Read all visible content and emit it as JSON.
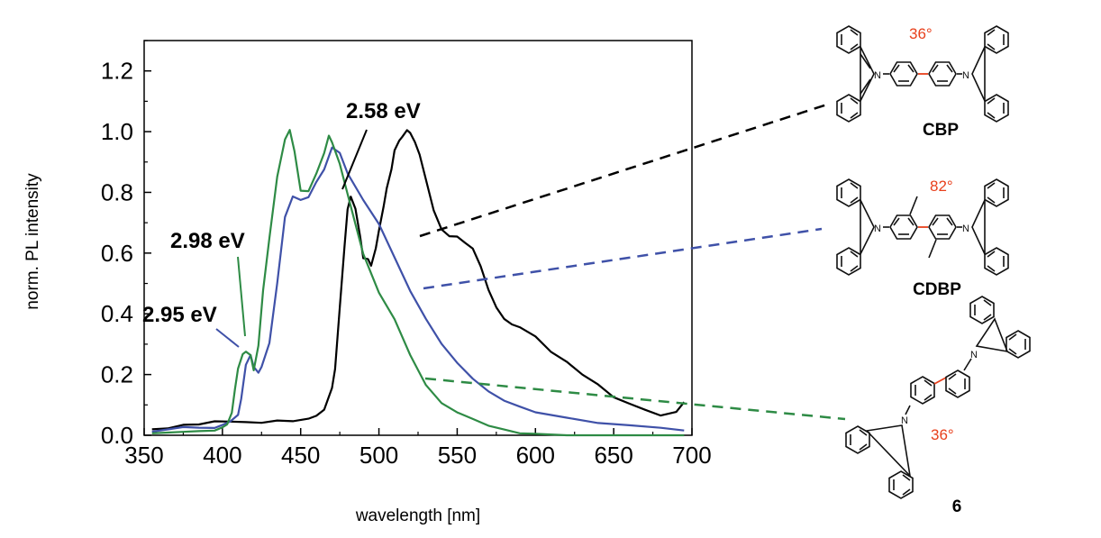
{
  "chart_data": {
    "type": "line",
    "xlabel": "wavelength [nm]",
    "ylabel": "norm. PL intensity",
    "xlim": [
      350,
      700
    ],
    "ylim": [
      0,
      1.3
    ],
    "xticks": [
      "350",
      "400",
      "450",
      "500",
      "550",
      "600",
      "650",
      "700"
    ],
    "yticks": [
      "0.0",
      "0.2",
      "0.4",
      "0.6",
      "0.8",
      "1.0",
      "1.2"
    ],
    "grid": false,
    "series": [
      {
        "name": "CBP",
        "color": "#000000",
        "x": [
          355,
          365,
          375,
          385,
          395,
          405,
          415,
          425,
          435,
          445,
          455,
          460,
          465,
          470,
          472,
          475,
          478,
          480,
          482,
          485,
          488,
          490,
          493,
          495,
          498,
          500,
          503,
          505,
          508,
          510,
          513,
          515,
          518,
          520,
          523,
          526,
          530,
          535,
          540,
          545,
          550,
          555,
          560,
          565,
          570,
          575,
          580,
          585,
          590,
          600,
          610,
          620,
          630,
          640,
          650,
          660,
          670,
          680,
          690,
          695
        ],
        "y": [
          0.02,
          0.02,
          0.03,
          0.03,
          0.04,
          0.04,
          0.04,
          0.04,
          0.05,
          0.05,
          0.06,
          0.07,
          0.09,
          0.16,
          0.22,
          0.42,
          0.62,
          0.74,
          0.78,
          0.74,
          0.65,
          0.58,
          0.58,
          0.56,
          0.62,
          0.68,
          0.76,
          0.82,
          0.88,
          0.94,
          0.97,
          0.98,
          1.0,
          0.99,
          0.96,
          0.92,
          0.84,
          0.74,
          0.68,
          0.66,
          0.66,
          0.64,
          0.62,
          0.56,
          0.48,
          0.42,
          0.38,
          0.36,
          0.35,
          0.32,
          0.27,
          0.24,
          0.2,
          0.17,
          0.13,
          0.11,
          0.09,
          0.07,
          0.08,
          0.11
        ]
      },
      {
        "name": "CDBP",
        "color": "#3f51a8",
        "x": [
          355,
          365,
          375,
          385,
          395,
          400,
          405,
          410,
          412,
          415,
          418,
          420,
          423,
          425,
          430,
          435,
          440,
          445,
          450,
          455,
          460,
          465,
          470,
          475,
          480,
          490,
          500,
          510,
          520,
          530,
          540,
          550,
          560,
          570,
          580,
          590,
          600,
          620,
          640,
          660,
          680,
          695
        ],
        "y": [
          0.01,
          0.02,
          0.03,
          0.03,
          0.03,
          0.04,
          0.05,
          0.07,
          0.12,
          0.23,
          0.26,
          0.22,
          0.2,
          0.22,
          0.3,
          0.5,
          0.72,
          0.79,
          0.78,
          0.79,
          0.84,
          0.88,
          0.95,
          0.93,
          0.86,
          0.77,
          0.69,
          0.58,
          0.47,
          0.38,
          0.3,
          0.24,
          0.19,
          0.15,
          0.12,
          0.1,
          0.08,
          0.06,
          0.04,
          0.03,
          0.02,
          0.01
        ]
      },
      {
        "name": "6",
        "color": "#2e8b45",
        "x": [
          355,
          365,
          375,
          385,
          395,
          400,
          403,
          406,
          408,
          410,
          413,
          415,
          418,
          420,
          423,
          426,
          430,
          435,
          440,
          443,
          446,
          450,
          455,
          460,
          465,
          468,
          470,
          475,
          480,
          485,
          490,
          500,
          510,
          520,
          530,
          540,
          550,
          560,
          570,
          580,
          590,
          600,
          620,
          640,
          660,
          680,
          695
        ],
        "y": [
          0.01,
          0.01,
          0.01,
          0.01,
          0.01,
          0.02,
          0.03,
          0.07,
          0.15,
          0.22,
          0.27,
          0.28,
          0.27,
          0.22,
          0.3,
          0.48,
          0.65,
          0.85,
          0.97,
          1.0,
          0.93,
          0.8,
          0.8,
          0.86,
          0.93,
          0.99,
          0.97,
          0.9,
          0.8,
          0.7,
          0.6,
          0.47,
          0.38,
          0.26,
          0.16,
          0.1,
          0.07,
          0.05,
          0.03,
          0.02,
          0.01,
          0.01,
          0.0,
          0.0,
          0.0,
          0.0,
          0.0
        ]
      }
    ],
    "annotations": [
      "2.58 eV",
      "2.98 eV",
      "2.95 eV"
    ]
  },
  "molecules": [
    {
      "name": "CBP",
      "angle": "36°"
    },
    {
      "name": "CDBP",
      "angle": "82°"
    },
    {
      "name": "6",
      "angle": "36°"
    }
  ],
  "atom_label": "N"
}
